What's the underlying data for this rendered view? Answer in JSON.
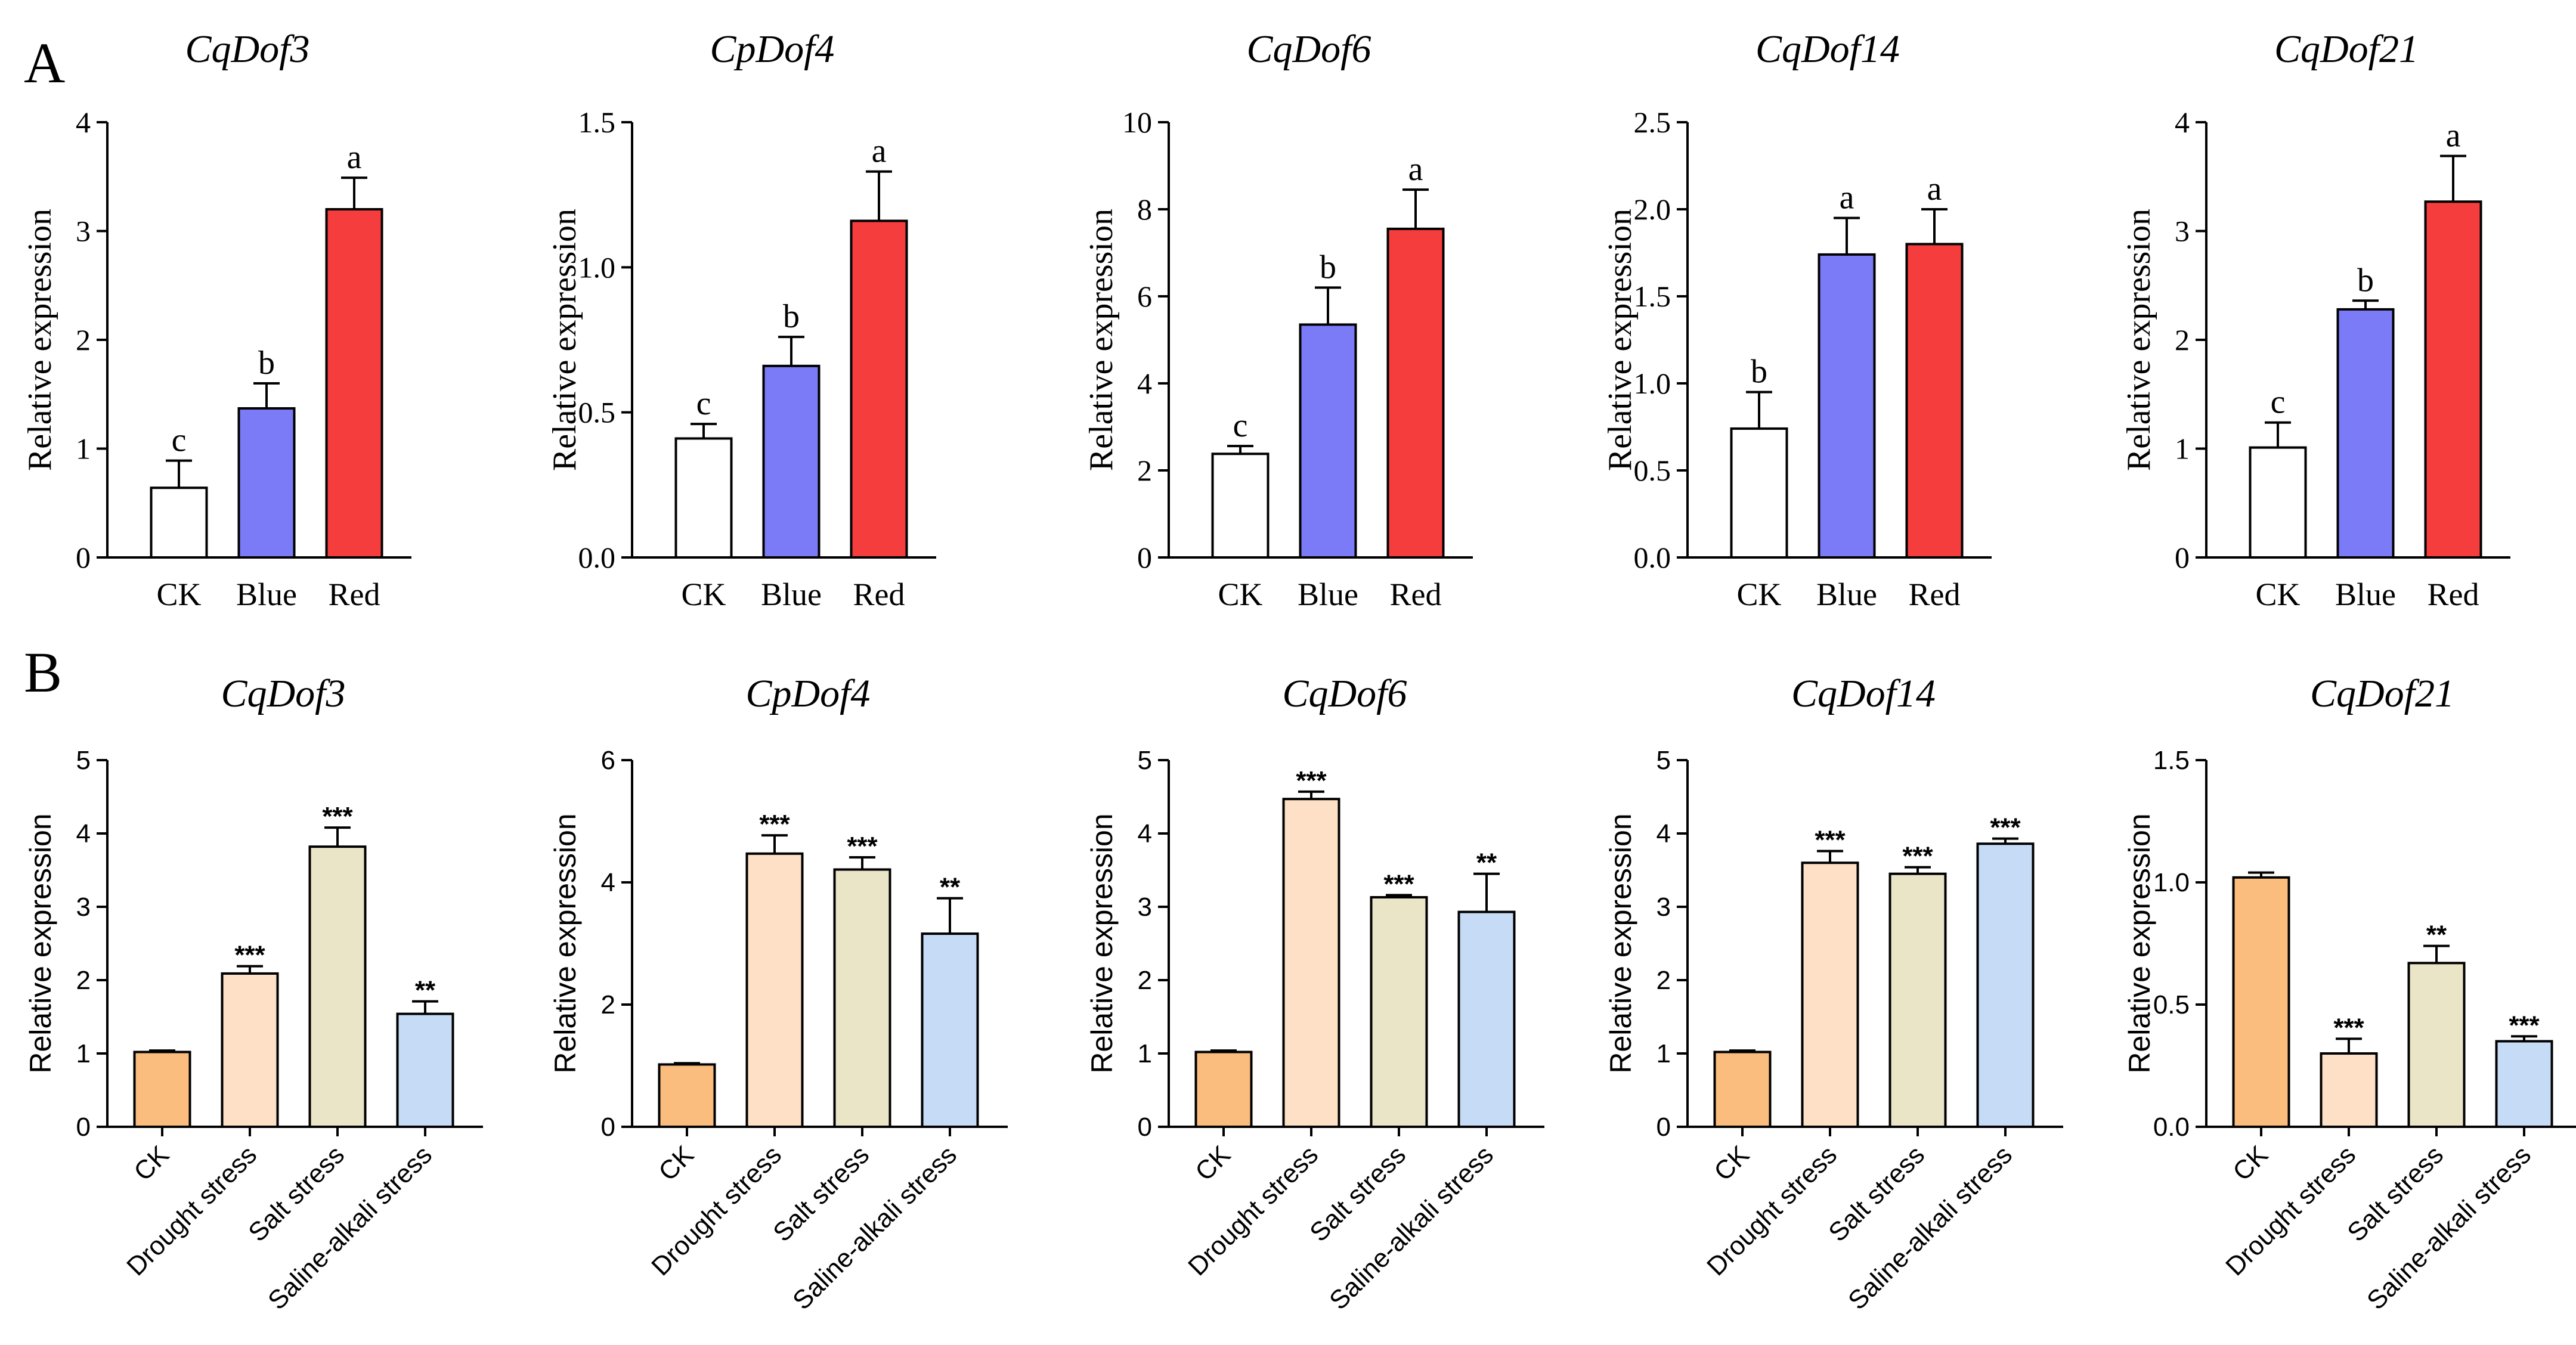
{
  "panels": [
    {
      "letter": "A"
    },
    {
      "letter": "B"
    }
  ],
  "chart_data": [
    {
      "type": "bar",
      "panel": "A",
      "title": "CqDof3",
      "ylabel": "Relative expression",
      "xlabel": "",
      "categories": [
        "CK",
        "Blue",
        "Red"
      ],
      "values": [
        0.64,
        1.37,
        3.2
      ],
      "errors": [
        0.25,
        0.23,
        0.29
      ],
      "significance": [
        "c",
        "b",
        "a"
      ],
      "colors": [
        "#ffffff",
        "#7b7bf7",
        "#f53d3d"
      ],
      "ylim": [
        0,
        4
      ],
      "yticks": [
        0,
        1,
        2,
        3,
        4
      ],
      "ytick_labels": [
        "0",
        "1",
        "2",
        "3",
        "4"
      ]
    },
    {
      "type": "bar",
      "panel": "A",
      "title": "CpDof4",
      "ylabel": "Relative expression",
      "xlabel": "",
      "categories": [
        "CK",
        "Blue",
        "Red"
      ],
      "values": [
        0.41,
        0.66,
        1.16
      ],
      "errors": [
        0.05,
        0.1,
        0.17
      ],
      "significance": [
        "c",
        "b",
        "a"
      ],
      "colors": [
        "#ffffff",
        "#7b7bf7",
        "#f53d3d"
      ],
      "ylim": [
        0,
        1.5
      ],
      "yticks": [
        0,
        0.5,
        1.0,
        1.5
      ],
      "ytick_labels": [
        "0.0",
        "0.5",
        "1.0",
        "1.5"
      ]
    },
    {
      "type": "bar",
      "panel": "A",
      "title": "CqDof6",
      "ylabel": "Relative expression",
      "xlabel": "",
      "categories": [
        "CK",
        "Blue",
        "Red"
      ],
      "values": [
        2.38,
        5.35,
        7.55
      ],
      "errors": [
        0.18,
        0.85,
        0.9
      ],
      "significance": [
        "c",
        "b",
        "a"
      ],
      "colors": [
        "#ffffff",
        "#7b7bf7",
        "#f53d3d"
      ],
      "ylim": [
        0,
        10
      ],
      "yticks": [
        0,
        2,
        4,
        6,
        8,
        10
      ],
      "ytick_labels": [
        "0",
        "2",
        "4",
        "6",
        "8",
        "10"
      ]
    },
    {
      "type": "bar",
      "panel": "A",
      "title": "CqDof14",
      "ylabel": "Relative expression",
      "xlabel": "",
      "categories": [
        "CK",
        "Blue",
        "Red"
      ],
      "values": [
        0.74,
        1.74,
        1.8
      ],
      "errors": [
        0.21,
        0.21,
        0.2
      ],
      "significance": [
        "b",
        "a",
        "a"
      ],
      "colors": [
        "#ffffff",
        "#7b7bf7",
        "#f53d3d"
      ],
      "ylim": [
        0,
        2.5
      ],
      "yticks": [
        0,
        0.5,
        1.0,
        1.5,
        2.0,
        2.5
      ],
      "ytick_labels": [
        "0.0",
        "0.5",
        "1.0",
        "1.5",
        "2.0",
        "2.5"
      ]
    },
    {
      "type": "bar",
      "panel": "A",
      "title": "CqDof21",
      "ylabel": "Relative expression",
      "xlabel": "",
      "categories": [
        "CK",
        "Blue",
        "Red"
      ],
      "values": [
        1.01,
        2.28,
        3.27
      ],
      "errors": [
        0.23,
        0.08,
        0.42
      ],
      "significance": [
        "c",
        "b",
        "a"
      ],
      "colors": [
        "#ffffff",
        "#7b7bf7",
        "#f53d3d"
      ],
      "ylim": [
        0,
        4
      ],
      "yticks": [
        0,
        1,
        2,
        3,
        4
      ],
      "ytick_labels": [
        "0",
        "1",
        "2",
        "3",
        "4"
      ]
    },
    {
      "type": "bar",
      "panel": "B",
      "title": "CqDof3",
      "ylabel": "Relative expression",
      "xlabel": "",
      "categories": [
        "CK",
        "Drought stress",
        "Salt stress",
        "Saline-alkali stress"
      ],
      "values": [
        1.02,
        2.09,
        3.82,
        1.54
      ],
      "errors": [
        0.02,
        0.1,
        0.26,
        0.17
      ],
      "significance": [
        "",
        "***",
        "***",
        "**"
      ],
      "colors": [
        "#fbbd7e",
        "#fde0c5",
        "#ebe5c8",
        "#c6dbf6"
      ],
      "ylim": [
        0,
        5
      ],
      "yticks": [
        0,
        1,
        2,
        3,
        4,
        5
      ],
      "ytick_labels": [
        "0",
        "1",
        "2",
        "3",
        "4",
        "5"
      ]
    },
    {
      "type": "bar",
      "panel": "B",
      "title": "CpDof4",
      "ylabel": "Relative expression",
      "xlabel": "",
      "categories": [
        "CK",
        "Drought stress",
        "Salt stress",
        "Saline-alkali stress"
      ],
      "values": [
        1.02,
        4.47,
        4.21,
        3.16
      ],
      "errors": [
        0.02,
        0.3,
        0.2,
        0.58
      ],
      "significance": [
        "",
        "***",
        "***",
        "**"
      ],
      "colors": [
        "#fbbd7e",
        "#fde0c5",
        "#ebe5c8",
        "#c6dbf6"
      ],
      "ylim": [
        0,
        6
      ],
      "yticks": [
        0,
        2,
        4,
        6
      ],
      "ytick_labels": [
        "0",
        "2",
        "4",
        "6"
      ]
    },
    {
      "type": "bar",
      "panel": "B",
      "title": "CqDof6",
      "ylabel": "Relative expression",
      "xlabel": "",
      "categories": [
        "CK",
        "Drought stress",
        "Salt stress",
        "Saline-alkali stress"
      ],
      "values": [
        1.02,
        4.47,
        3.13,
        2.93
      ],
      "errors": [
        0.02,
        0.1,
        0.03,
        0.52
      ],
      "significance": [
        "",
        "***",
        "***",
        "**"
      ],
      "colors": [
        "#fbbd7e",
        "#fde0c5",
        "#ebe5c8",
        "#c6dbf6"
      ],
      "ylim": [
        0,
        5
      ],
      "yticks": [
        0,
        1,
        2,
        3,
        4,
        5
      ],
      "ytick_labels": [
        "0",
        "1",
        "2",
        "3",
        "4",
        "5"
      ]
    },
    {
      "type": "bar",
      "panel": "B",
      "title": "CqDof14",
      "ylabel": "Relative expression",
      "xlabel": "",
      "categories": [
        "CK",
        "Drought stress",
        "Salt stress",
        "Saline-alkali stress"
      ],
      "values": [
        1.02,
        3.6,
        3.45,
        3.86
      ],
      "errors": [
        0.02,
        0.16,
        0.09,
        0.07
      ],
      "significance": [
        "",
        "***",
        "***",
        "***"
      ],
      "colors": [
        "#fbbd7e",
        "#fde0c5",
        "#ebe5c8",
        "#c6dbf6"
      ],
      "ylim": [
        0,
        5
      ],
      "yticks": [
        0,
        1,
        2,
        3,
        4,
        5
      ],
      "ytick_labels": [
        "0",
        "1",
        "2",
        "3",
        "4",
        "5"
      ]
    },
    {
      "type": "bar",
      "panel": "B",
      "title": "CqDof21",
      "ylabel": "Relative expression",
      "xlabel": "",
      "categories": [
        "CK",
        "Drought stress",
        "Salt stress",
        "Saline-alkali stress"
      ],
      "values": [
        1.02,
        0.3,
        0.67,
        0.35
      ],
      "errors": [
        0.02,
        0.06,
        0.07,
        0.02
      ],
      "significance": [
        "",
        "***",
        "**",
        "***"
      ],
      "colors": [
        "#fbbd7e",
        "#fde0c5",
        "#ebe5c8",
        "#c6dbf6"
      ],
      "ylim": [
        0,
        1.5
      ],
      "yticks": [
        0,
        0.5,
        1.0,
        1.5
      ],
      "ytick_labels": [
        "0.0",
        "0.5",
        "1.0",
        "1.5"
      ]
    }
  ]
}
